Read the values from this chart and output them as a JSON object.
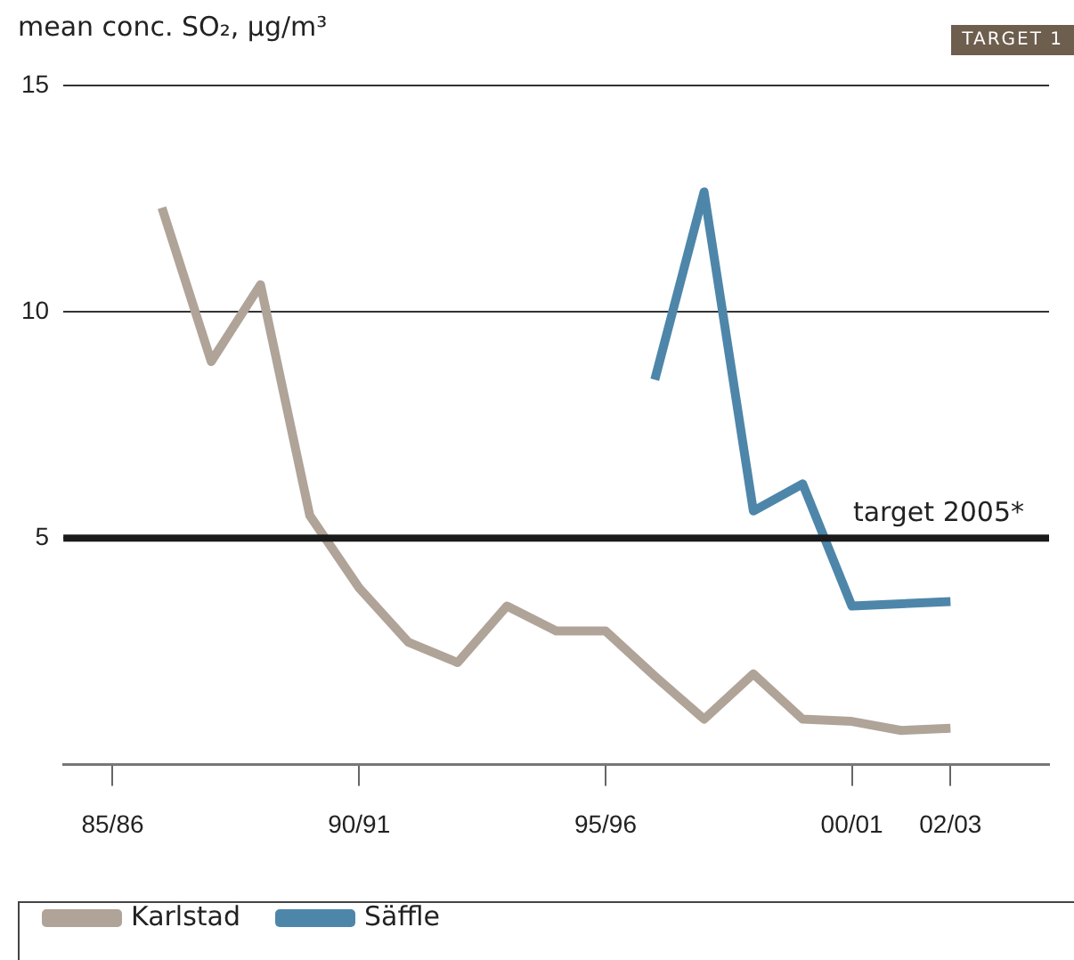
{
  "chart_data": {
    "type": "line",
    "ylabel": "mean conc. SO₂, µg/m³",
    "annotations": [
      "TARGET 1"
    ],
    "categories": [
      null,
      "85/86",
      null,
      null,
      null,
      null,
      "90/91",
      null,
      null,
      null,
      null,
      "95/96",
      null,
      null,
      null,
      null,
      "00/01",
      null,
      "02/03",
      null,
      null
    ],
    "series": [
      {
        "name": "Karlstad",
        "color": "#b0a398",
        "values": [
          null,
          null,
          12.3,
          8.9,
          10.6,
          5.5,
          3.9,
          2.7,
          2.25,
          3.5,
          2.95,
          2.95,
          1.95,
          1.0,
          2.0,
          1.0,
          0.95,
          0.75,
          0.8,
          null,
          null
        ]
      },
      {
        "name": "Säffle",
        "color": "#4e86aa",
        "values": [
          null,
          null,
          null,
          null,
          null,
          null,
          null,
          null,
          null,
          null,
          null,
          null,
          8.5,
          12.65,
          5.6,
          6.2,
          3.5,
          null,
          3.6,
          null,
          null
        ]
      }
    ],
    "ylim": [
      0,
      15
    ],
    "yticks": [
      {
        "value": 0,
        "label": null
      },
      5,
      10,
      15
    ],
    "ref_lines": [
      {
        "axis": "y",
        "value": 5,
        "label": "target 2005*",
        "color": "#1a1a1a"
      }
    ],
    "grid": "y",
    "legend": "bottom",
    "marker": "none",
    "line_style": "solid"
  }
}
